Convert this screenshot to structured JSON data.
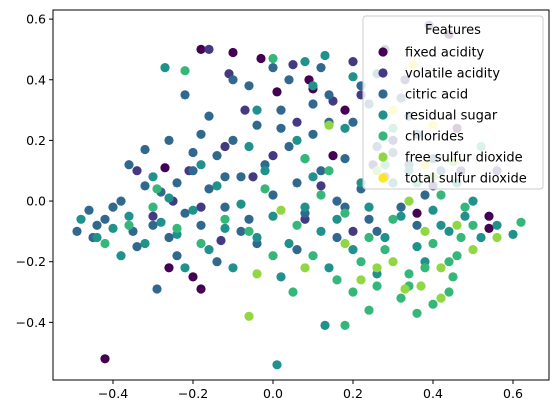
{
  "chart_data": {
    "type": "scatter",
    "title": "",
    "xlabel": "",
    "ylabel": "",
    "xlim": [
      -0.55,
      0.69
    ],
    "ylim": [
      -0.59,
      0.63
    ],
    "x_ticks": [
      -0.4,
      -0.2,
      0.0,
      0.2,
      0.4,
      0.6
    ],
    "x_tick_labels": [
      "−0.4",
      "−0.2",
      "0.0",
      "0.2",
      "0.4",
      "0.6"
    ],
    "y_ticks": [
      -0.4,
      -0.2,
      0.0,
      0.2,
      0.4,
      0.6
    ],
    "y_tick_labels": [
      "−0.4",
      "−0.2",
      "0.0",
      "0.2",
      "0.4",
      "0.6"
    ],
    "grid": false,
    "legend": {
      "title": "Features",
      "placement": "top-right"
    },
    "series": [
      {
        "name": "fixed acidity",
        "color": "#440154",
        "values": [
          [
            -0.42,
            -0.52
          ],
          [
            -0.27,
            0.11
          ],
          [
            -0.18,
            -0.29
          ],
          [
            -0.26,
            -0.22
          ],
          [
            -0.2,
            -0.25
          ],
          [
            -0.18,
            0.5
          ],
          [
            -0.1,
            0.49
          ],
          [
            0.09,
            0.4
          ],
          [
            0.1,
            0.37
          ],
          [
            0.18,
            0.3
          ],
          [
            0.36,
            -0.04
          ],
          [
            0.54,
            -0.05
          ],
          [
            0.44,
            0.55
          ],
          [
            0.54,
            -0.09
          ],
          [
            -0.03,
            0.47
          ],
          [
            0.46,
            0.24
          ],
          [
            0.15,
            0.15
          ],
          [
            0.01,
            0.36
          ]
        ]
      },
      {
        "name": "volatile acidity",
        "color": "#443983",
        "values": [
          [
            -0.16,
            0.5
          ],
          [
            -0.11,
            0.42
          ],
          [
            0.05,
            0.45
          ],
          [
            0.2,
            0.46
          ],
          [
            0.28,
            0.5
          ],
          [
            -0.34,
            0.1
          ],
          [
            0.22,
            0.35
          ],
          [
            0.47,
            0.1
          ],
          [
            0.56,
            0.1
          ],
          [
            0.39,
            0.58
          ],
          [
            -0.21,
            0.1
          ],
          [
            -0.25,
            0.0
          ],
          [
            -0.12,
            0.18
          ],
          [
            0.06,
            0.26
          ],
          [
            0.15,
            0.33
          ],
          [
            0.3,
            0.2
          ],
          [
            0.4,
            0.05
          ],
          [
            -0.07,
            0.3
          ],
          [
            0.0,
            0.15
          ],
          [
            0.12,
            0.05
          ],
          [
            -0.3,
            -0.05
          ],
          [
            -0.18,
            -0.02
          ],
          [
            0.25,
            0.12
          ],
          [
            0.33,
            0.4
          ],
          [
            -0.05,
            0.08
          ],
          [
            0.08,
            -0.06
          ],
          [
            0.2,
            -0.1
          ],
          [
            -0.13,
            -0.13
          ]
        ]
      },
      {
        "name": "citric acid",
        "color": "#31688e",
        "values": [
          [
            -0.49,
            -0.1
          ],
          [
            -0.45,
            -0.12
          ],
          [
            -0.42,
            -0.06
          ],
          [
            -0.38,
            0.0
          ],
          [
            -0.35,
            -0.1
          ],
          [
            -0.32,
            0.05
          ],
          [
            -0.3,
            -0.08
          ],
          [
            -0.28,
            0.03
          ],
          [
            -0.26,
            -0.12
          ],
          [
            -0.24,
            0.06
          ],
          [
            -0.22,
            -0.04
          ],
          [
            -0.2,
            0.1
          ],
          [
            -0.18,
            -0.08
          ],
          [
            -0.16,
            0.04
          ],
          [
            -0.14,
            0.15
          ],
          [
            -0.12,
            -0.02
          ],
          [
            -0.1,
            0.2
          ],
          [
            -0.08,
            0.08
          ],
          [
            -0.06,
            -0.06
          ],
          [
            -0.04,
            0.25
          ],
          [
            -0.02,
            0.12
          ],
          [
            0.0,
            0.02
          ],
          [
            0.02,
            0.3
          ],
          [
            0.04,
            0.18
          ],
          [
            0.06,
            0.06
          ],
          [
            0.08,
            -0.04
          ],
          [
            0.1,
            0.22
          ],
          [
            0.12,
            0.1
          ],
          [
            0.14,
            0.35
          ],
          [
            0.16,
            0.0
          ],
          [
            0.18,
            0.14
          ],
          [
            0.2,
            0.26
          ],
          [
            0.22,
            0.04
          ],
          [
            0.24,
            -0.06
          ],
          [
            0.26,
            0.18
          ],
          [
            0.28,
            0.08
          ],
          [
            0.3,
            0.3
          ],
          [
            0.32,
            -0.02
          ],
          [
            0.34,
            0.12
          ],
          [
            0.36,
            0.22
          ],
          [
            0.38,
            0.02
          ],
          [
            0.42,
            0.1
          ],
          [
            -0.36,
            0.12
          ],
          [
            -0.4,
            -0.02
          ],
          [
            -0.44,
            -0.08
          ],
          [
            -0.26,
            0.2
          ],
          [
            -0.16,
            0.28
          ],
          [
            -0.06,
            0.38
          ],
          [
            0.04,
            0.4
          ],
          [
            0.12,
            0.44
          ],
          [
            0.22,
            0.38
          ],
          [
            -0.34,
            -0.15
          ],
          [
            -0.24,
            -0.18
          ],
          [
            -0.14,
            -0.2
          ],
          [
            -0.04,
            -0.14
          ],
          [
            0.06,
            -0.16
          ],
          [
            0.16,
            -0.12
          ],
          [
            0.26,
            -0.1
          ],
          [
            0.36,
            -0.08
          ],
          [
            -0.29,
            -0.29
          ],
          [
            -0.22,
            0.35
          ],
          [
            -0.1,
            0.4
          ],
          [
            0.0,
            0.44
          ],
          [
            0.26,
            0.42
          ],
          [
            0.32,
            0.34
          ],
          [
            -0.46,
            -0.03
          ],
          [
            -0.18,
            0.22
          ],
          [
            -0.08,
            -0.1
          ],
          [
            0.02,
            0.24
          ],
          [
            0.1,
            0.32
          ],
          [
            0.18,
            -0.02
          ],
          [
            0.3,
            0.16
          ],
          [
            0.4,
            0.14
          ],
          [
            -0.32,
            0.17
          ],
          [
            -0.2,
            0.16
          ],
          [
            -0.12,
            0.08
          ],
          [
            0.08,
            0.14
          ],
          [
            0.14,
            0.26
          ],
          [
            0.24,
            0.32
          ],
          [
            0.34,
            0.28
          ]
        ]
      },
      {
        "name": "residual sugar",
        "color": "#21918c",
        "values": [
          [
            -0.44,
            -0.12
          ],
          [
            -0.4,
            -0.09
          ],
          [
            -0.36,
            -0.05
          ],
          [
            -0.32,
            -0.14
          ],
          [
            -0.28,
            -0.07
          ],
          [
            -0.24,
            -0.11
          ],
          [
            -0.2,
            -0.03
          ],
          [
            -0.16,
            -0.16
          ],
          [
            -0.12,
            -0.09
          ],
          [
            -0.08,
            -0.01
          ],
          [
            -0.04,
            -0.12
          ],
          [
            0.0,
            -0.05
          ],
          [
            0.04,
            -0.14
          ],
          [
            0.08,
            -0.02
          ],
          [
            0.12,
            -0.1
          ],
          [
            0.16,
            -0.06
          ],
          [
            0.2,
            -0.16
          ],
          [
            0.24,
            -0.02
          ],
          [
            0.28,
            -0.12
          ],
          [
            0.32,
            -0.05
          ],
          [
            0.36,
            -0.15
          ],
          [
            0.4,
            -0.03
          ],
          [
            0.44,
            -0.1
          ],
          [
            0.48,
            -0.05
          ],
          [
            0.52,
            -0.12
          ],
          [
            0.6,
            -0.11
          ],
          [
            -0.27,
            0.44
          ],
          [
            0.13,
            0.48
          ],
          [
            0.01,
            -0.54
          ],
          [
            0.13,
            -0.41
          ],
          [
            -0.38,
            -0.18
          ],
          [
            -0.26,
            0.01
          ],
          [
            -0.14,
            0.05
          ],
          [
            -0.02,
            0.1
          ],
          [
            0.1,
            0.08
          ],
          [
            0.22,
            0.06
          ],
          [
            0.34,
            0.1
          ],
          [
            0.46,
            0.06
          ],
          [
            -0.3,
            0.08
          ],
          [
            -0.18,
            0.12
          ],
          [
            -0.06,
            0.18
          ],
          [
            0.06,
            0.2
          ],
          [
            0.18,
            0.24
          ],
          [
            0.3,
            0.06
          ],
          [
            -0.1,
            -0.22
          ],
          [
            0.02,
            -0.25
          ],
          [
            0.14,
            -0.22
          ],
          [
            0.26,
            -0.24
          ],
          [
            0.38,
            -0.2
          ],
          [
            -0.22,
            -0.22
          ],
          [
            0.1,
            0.38
          ],
          [
            -0.04,
            0.3
          ],
          [
            0.2,
            0.41
          ],
          [
            0.08,
            0.46
          ],
          [
            -0.48,
            -0.06
          ],
          [
            0.42,
            -0.08
          ],
          [
            0.5,
            0.0
          ],
          [
            0.56,
            -0.08
          ]
        ]
      },
      {
        "name": "chlorides",
        "color": "#35b779",
        "values": [
          [
            -0.29,
            0.04
          ],
          [
            0.45,
            -0.25
          ],
          [
            0.34,
            -0.24
          ],
          [
            0.18,
            -0.41
          ],
          [
            0.24,
            -0.36
          ],
          [
            0.4,
            -0.34
          ],
          [
            0.62,
            -0.07
          ],
          [
            0.52,
            0.18
          ],
          [
            -0.22,
            0.43
          ],
          [
            0.0,
            0.47
          ],
          [
            0.1,
            -0.18
          ],
          [
            0.16,
            -0.26
          ],
          [
            0.22,
            -0.2
          ],
          [
            0.28,
            -0.16
          ],
          [
            0.34,
            -0.28
          ],
          [
            0.4,
            -0.14
          ],
          [
            0.46,
            -0.18
          ],
          [
            0.5,
            -0.08
          ],
          [
            0.3,
            -0.06
          ],
          [
            0.24,
            -0.12
          ],
          [
            0.18,
            -0.04
          ],
          [
            0.12,
            0.02
          ],
          [
            0.06,
            -0.08
          ],
          [
            0.0,
            -0.18
          ],
          [
            -0.06,
            -0.1
          ],
          [
            -0.12,
            -0.06
          ],
          [
            -0.18,
            -0.14
          ],
          [
            -0.24,
            -0.09
          ],
          [
            -0.3,
            -0.02
          ],
          [
            -0.36,
            -0.08
          ],
          [
            0.2,
            -0.3
          ],
          [
            0.26,
            -0.28
          ],
          [
            0.32,
            -0.32
          ],
          [
            0.38,
            -0.22
          ],
          [
            0.44,
            -0.3
          ],
          [
            0.36,
            0.06
          ],
          [
            0.42,
            0.02
          ],
          [
            0.48,
            -0.02
          ],
          [
            0.28,
            0.12
          ],
          [
            0.14,
            0.1
          ],
          [
            -0.02,
            0.04
          ],
          [
            0.08,
            0.14
          ],
          [
            0.44,
            -0.2
          ],
          [
            0.47,
            -0.12
          ],
          [
            0.3,
            0.24
          ],
          [
            -0.42,
            -0.14
          ],
          [
            0.05,
            -0.3
          ],
          [
            0.36,
            -0.37
          ]
        ]
      },
      {
        "name": "free sulfur dioxide",
        "color": "#90d743",
        "values": [
          [
            -0.06,
            -0.38
          ],
          [
            0.33,
            -0.29
          ],
          [
            0.37,
            -0.28
          ],
          [
            0.26,
            0.1
          ],
          [
            0.56,
            -0.12
          ],
          [
            0.45,
            0.13
          ],
          [
            0.08,
            -0.22
          ],
          [
            0.3,
            -0.2
          ],
          [
            0.42,
            -0.22
          ],
          [
            0.34,
            0.0
          ],
          [
            0.18,
            -0.14
          ],
          [
            0.4,
            0.08
          ],
          [
            0.14,
            0.25
          ],
          [
            0.22,
            -0.26
          ],
          [
            0.46,
            -0.08
          ],
          [
            -0.04,
            -0.24
          ],
          [
            0.02,
            -0.03
          ],
          [
            0.38,
            -0.1
          ],
          [
            0.26,
            -0.22
          ],
          [
            0.5,
            -0.16
          ],
          [
            0.42,
            -0.32
          ]
        ]
      },
      {
        "name": "total sulfur dioxide",
        "color": "#fde725",
        "values": [
          [
            0.35,
            0.45
          ],
          [
            0.38,
            0.12
          ],
          [
            0.3,
            0.3
          ],
          [
            0.4,
            0.25
          ]
        ]
      }
    ]
  }
}
